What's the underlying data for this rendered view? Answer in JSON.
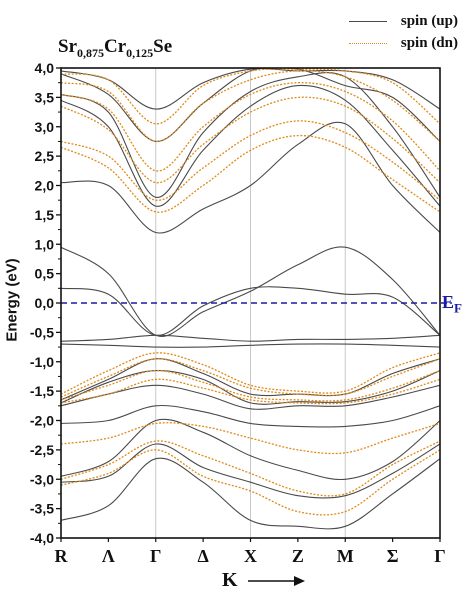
{
  "chart_data": {
    "type": "line",
    "title_parts": [
      {
        "text": "Sr",
        "sub": "0,875"
      },
      {
        "text": "Cr",
        "sub": "0,125"
      },
      {
        "text": "Se",
        "sub": ""
      }
    ],
    "ylabel": "Energy (eV)",
    "xlabel": "K",
    "ylim": [
      -4.0,
      4.0
    ],
    "yticks": [
      "4,0",
      "3,5",
      "3,0",
      "2,5",
      "2,0",
      "1,5",
      "1,0",
      "0,5",
      "0,0",
      "-0,5",
      "-1,0",
      "-1,5",
      "-2,0",
      "-2,5",
      "-3,0",
      "-3,5",
      "-4,0"
    ],
    "ytick_values": [
      4.0,
      3.5,
      3.0,
      2.5,
      2.0,
      1.5,
      1.0,
      0.5,
      0.0,
      -0.5,
      -1.0,
      -1.5,
      -2.0,
      -2.5,
      -3.0,
      -3.5,
      -4.0
    ],
    "k_points": [
      {
        "label": "R",
        "pos": 0.0
      },
      {
        "label": "Λ",
        "pos": 0.5
      },
      {
        "label": "Γ",
        "pos": 1.0
      },
      {
        "label": "Δ",
        "pos": 1.5
      },
      {
        "label": "X",
        "pos": 2.0
      },
      {
        "label": "Z",
        "pos": 2.5
      },
      {
        "label": "M",
        "pos": 3.0
      },
      {
        "label": "Σ",
        "pos": 3.5
      },
      {
        "label": "Γ",
        "pos": 4.0
      }
    ],
    "symmetry_lines_at": [
      1.0,
      2.0,
      3.0
    ],
    "fermi_level": {
      "value": 0.0,
      "label": "E",
      "label_sub": "F",
      "color": "#1a1aa8"
    },
    "legend": {
      "position": "top-right",
      "entries": [
        "spin (up)",
        "spin (dn)"
      ]
    },
    "series": [
      {
        "name": "spin (up)",
        "color": "#4a4a4a",
        "style": "solid",
        "bands": [
          {
            "values": [
              -3.7,
              -3.45,
              -2.65,
              -3.05,
              -3.7,
              -3.8,
              -3.8,
              -3.25,
              -2.65
            ]
          },
          {
            "values": [
              -3.05,
              -2.95,
              -2.4,
              -2.8,
              -3.05,
              -3.28,
              -3.28,
              -2.9,
              -2.4
            ]
          },
          {
            "values": [
              -2.95,
              -2.7,
              -2.0,
              -2.2,
              -2.6,
              -2.85,
              -3.0,
              -2.7,
              -2.0
            ]
          },
          {
            "values": [
              -2.05,
              -2.0,
              -1.75,
              -1.85,
              -2.05,
              -2.1,
              -2.1,
              -2.0,
              -1.75
            ]
          },
          {
            "values": [
              -1.75,
              -1.55,
              -1.4,
              -1.55,
              -1.8,
              -1.75,
              -1.75,
              -1.6,
              -1.4
            ]
          },
          {
            "values": [
              -1.7,
              -1.35,
              -1.15,
              -1.3,
              -1.7,
              -1.68,
              -1.68,
              -1.5,
              -1.15
            ]
          },
          {
            "values": [
              -1.65,
              -1.3,
              -0.95,
              -1.2,
              -1.55,
              -1.55,
              -1.55,
              -1.2,
              -0.95
            ]
          },
          {
            "values": [
              -0.7,
              -0.72,
              -0.75,
              -0.75,
              -0.72,
              -0.7,
              -0.7,
              -0.72,
              -0.75
            ]
          },
          {
            "values": [
              -0.65,
              -0.62,
              -0.55,
              -0.6,
              -0.65,
              -0.62,
              -0.62,
              -0.6,
              -0.55
            ]
          },
          {
            "values": [
              0.25,
              0.15,
              -0.55,
              -0.05,
              0.25,
              0.25,
              0.15,
              0.1,
              -0.55
            ]
          },
          {
            "values": [
              0.95,
              0.5,
              -0.55,
              -0.15,
              0.2,
              0.65,
              0.95,
              0.4,
              -0.55
            ]
          },
          {
            "values": [
              2.05,
              2.0,
              1.2,
              1.6,
              2.0,
              2.7,
              3.05,
              2.0,
              1.2
            ]
          },
          {
            "values": [
              3.45,
              3.0,
              1.65,
              2.6,
              3.35,
              3.7,
              3.45,
              2.6,
              1.65
            ]
          },
          {
            "values": [
              3.55,
              3.25,
              1.8,
              2.9,
              3.6,
              3.85,
              3.85,
              3.0,
              1.8
            ]
          },
          {
            "values": [
              3.9,
              3.55,
              2.75,
              3.4,
              3.95,
              3.98,
              3.7,
              3.5,
              2.75
            ]
          },
          {
            "values": [
              3.95,
              3.8,
              3.3,
              3.75,
              3.98,
              3.95,
              3.95,
              3.8,
              3.3
            ]
          }
        ]
      },
      {
        "name": "spin (dn)",
        "color": "#e08a1a",
        "style": "dotted",
        "bands": [
          {
            "values": [
              -3.1,
              -2.9,
              -2.5,
              -2.95,
              -3.2,
              -3.55,
              -3.55,
              -3.0,
              -2.5
            ]
          },
          {
            "values": [
              -3.0,
              -2.75,
              -2.35,
              -2.6,
              -2.9,
              -3.2,
              -3.25,
              -2.75,
              -2.35
            ]
          },
          {
            "values": [
              -2.4,
              -2.3,
              -2.05,
              -2.1,
              -2.3,
              -2.5,
              -2.55,
              -2.3,
              -2.05
            ]
          },
          {
            "values": [
              -1.7,
              -1.55,
              -1.3,
              -1.45,
              -1.65,
              -1.7,
              -1.7,
              -1.55,
              -1.3
            ]
          },
          {
            "values": [
              -1.65,
              -1.4,
              -1.15,
              -1.35,
              -1.6,
              -1.65,
              -1.65,
              -1.45,
              -1.15
            ]
          },
          {
            "values": [
              -1.6,
              -1.25,
              -0.95,
              -1.15,
              -1.45,
              -1.55,
              -1.55,
              -1.25,
              -0.95
            ]
          },
          {
            "values": [
              -1.55,
              -1.15,
              -0.85,
              -1.05,
              -1.4,
              -1.5,
              -1.5,
              -1.1,
              -0.85
            ]
          },
          {
            "values": [
              2.65,
              2.3,
              1.55,
              2.0,
              2.6,
              2.85,
              2.65,
              2.1,
              1.55
            ]
          },
          {
            "values": [
              2.75,
              2.5,
              1.75,
              2.3,
              2.85,
              3.1,
              2.9,
              2.4,
              1.75
            ]
          },
          {
            "values": [
              3.35,
              2.95,
              2.05,
              2.7,
              3.25,
              3.5,
              3.35,
              2.8,
              2.05
            ]
          },
          {
            "values": [
              3.55,
              3.3,
              2.25,
              3.0,
              3.55,
              3.75,
              3.6,
              3.1,
              2.25
            ]
          },
          {
            "values": [
              3.75,
              3.6,
              2.75,
              3.4,
              3.8,
              3.95,
              3.85,
              3.45,
              2.75
            ]
          },
          {
            "values": [
              3.9,
              3.8,
              3.05,
              3.7,
              3.95,
              3.98,
              3.95,
              3.75,
              3.05
            ]
          }
        ]
      }
    ]
  }
}
